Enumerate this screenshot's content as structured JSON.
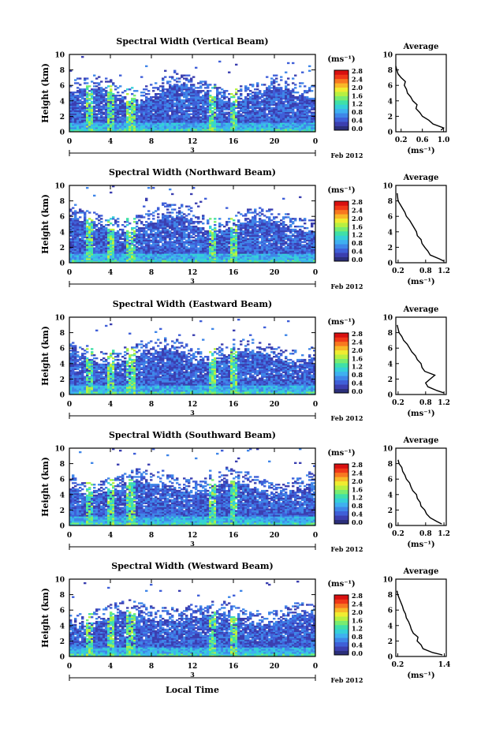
{
  "figure": {
    "xlabel": "Local Time",
    "date_label": "Feb 2012",
    "day_label": "3",
    "units": "(ms⁻¹)",
    "avg_title": "Average",
    "avg_xlabel": "(ms⁻¹)",
    "ylabel": "Height (km)"
  },
  "colors": {
    "colorbar": [
      "#2b2f7a",
      "#3b3fb0",
      "#3f5fd8",
      "#3f86e8",
      "#3fb0f0",
      "#35d0d8",
      "#40e0a8",
      "#78ec70",
      "#b8f040",
      "#f0ec30",
      "#f8b828",
      "#f87820",
      "#f03818",
      "#d81010"
    ]
  },
  "chart_data": [
    {
      "type": "heatmap",
      "title": "Spectral Width (Vertical Beam)",
      "x_ticks": [
        "0",
        "4",
        "8",
        "12",
        "16",
        "20",
        "0"
      ],
      "y_ticks": [
        "0",
        "2",
        "4",
        "6",
        "8",
        "10"
      ],
      "xlim": [
        0,
        24
      ],
      "ylim": [
        0,
        10
      ],
      "colorbar_ticks": [
        "0.0",
        "0.4",
        "0.8",
        "1.2",
        "1.6",
        "2.0",
        "2.4",
        "2.8"
      ],
      "avg_profile": {
        "x_ticks": [
          "0.2",
          "0.6",
          "1.0"
        ],
        "xlim": [
          0.1,
          1.05
        ],
        "x": [
          0.95,
          1.0,
          0.8,
          0.72,
          0.6,
          0.55,
          0.48,
          0.5,
          0.42,
          0.38,
          0.32,
          0.3,
          0.26,
          0.28,
          0.2,
          0.14,
          0.12,
          0.1
        ],
        "y": [
          0.2,
          0.5,
          1.0,
          1.5,
          2.0,
          2.5,
          3.0,
          3.5,
          4.0,
          4.5,
          5.0,
          5.5,
          6.0,
          6.5,
          7.0,
          7.5,
          8.0,
          8.5
        ]
      }
    },
    {
      "type": "heatmap",
      "title": "Spectral Width (Northward Beam)",
      "x_ticks": [
        "0",
        "4",
        "8",
        "12",
        "16",
        "20",
        "0"
      ],
      "y_ticks": [
        "0",
        "2",
        "4",
        "6",
        "8",
        "10"
      ],
      "xlim": [
        0,
        24
      ],
      "ylim": [
        0,
        10
      ],
      "colorbar_ticks": [
        "0.0",
        "0.4",
        "0.8",
        "1.2",
        "1.6",
        "2.0",
        "2.4",
        "2.8"
      ],
      "avg_profile": {
        "x_ticks": [
          "0.2",
          "0.8",
          "1.2"
        ],
        "xlim": [
          0.15,
          1.25
        ],
        "x": [
          1.2,
          1.1,
          0.9,
          0.85,
          0.78,
          0.72,
          0.7,
          0.62,
          0.6,
          0.55,
          0.5,
          0.45,
          0.38,
          0.35,
          0.3,
          0.25,
          0.2,
          0.18
        ],
        "y": [
          0.2,
          0.5,
          1.0,
          1.5,
          2.0,
          2.5,
          3.0,
          3.5,
          4.0,
          4.5,
          5.0,
          5.5,
          6.0,
          6.5,
          7.0,
          7.5,
          8.0,
          9.0
        ]
      }
    },
    {
      "type": "heatmap",
      "title": "Spectral Width (Eastward Beam)",
      "x_ticks": [
        "0",
        "4",
        "8",
        "12",
        "16",
        "20",
        "0"
      ],
      "y_ticks": [
        "0",
        "2",
        "4",
        "6",
        "8",
        "10"
      ],
      "xlim": [
        0,
        24
      ],
      "ylim": [
        0,
        10
      ],
      "colorbar_ticks": [
        "0.0",
        "0.4",
        "0.8",
        "1.2",
        "1.6",
        "2.0",
        "2.4",
        "2.8"
      ],
      "avg_profile": {
        "x_ticks": [
          "0.2",
          "0.8",
          "1.2"
        ],
        "xlim": [
          0.15,
          1.25
        ],
        "x": [
          1.2,
          1.05,
          0.85,
          0.8,
          0.9,
          1.0,
          0.78,
          0.72,
          0.7,
          0.62,
          0.58,
          0.5,
          0.45,
          0.4,
          0.32,
          0.28,
          0.22,
          0.18
        ],
        "y": [
          0.2,
          0.5,
          1.0,
          1.5,
          2.0,
          2.5,
          3.0,
          3.5,
          4.0,
          4.5,
          5.0,
          5.5,
          6.0,
          6.5,
          7.0,
          7.5,
          8.0,
          9.0
        ]
      }
    },
    {
      "type": "heatmap",
      "title": "Spectral Width (Southward Beam)",
      "x_ticks": [
        "0",
        "4",
        "8",
        "12",
        "16",
        "20",
        "0"
      ],
      "y_ticks": [
        "0",
        "2",
        "4",
        "6",
        "8",
        "10"
      ],
      "xlim": [
        0,
        24
      ],
      "ylim": [
        0,
        10
      ],
      "colorbar_ticks": [
        "0.0",
        "0.4",
        "0.8",
        "1.2",
        "1.6",
        "2.0",
        "2.4",
        "2.8"
      ],
      "avg_profile": {
        "x_ticks": [
          "0.2",
          "0.8",
          "1.2"
        ],
        "xlim": [
          0.15,
          1.25
        ],
        "x": [
          1.15,
          1.05,
          0.9,
          0.82,
          0.78,
          0.7,
          0.68,
          0.62,
          0.6,
          0.52,
          0.48,
          0.45,
          0.38,
          0.35,
          0.3,
          0.28,
          0.22,
          0.2
        ],
        "y": [
          0.2,
          0.5,
          1.0,
          1.5,
          2.0,
          2.5,
          3.0,
          3.5,
          4.0,
          4.5,
          5.0,
          5.5,
          6.0,
          6.5,
          7.0,
          7.5,
          8.0,
          8.5
        ]
      }
    },
    {
      "type": "heatmap",
      "title": "Spectral Width (Westward Beam)",
      "x_ticks": [
        "0",
        "4",
        "8",
        "12",
        "16",
        "20",
        "0"
      ],
      "y_ticks": [
        "0",
        "2",
        "4",
        "6",
        "8",
        "10"
      ],
      "xlim": [
        0,
        24
      ],
      "ylim": [
        0,
        10
      ],
      "colorbar_ticks": [
        "0.0",
        "0.4",
        "0.8",
        "1.2",
        "1.6",
        "2.0",
        "2.4",
        "2.8"
      ],
      "avg_profile": {
        "x_ticks": [
          "0.2",
          "1.4"
        ],
        "xlim": [
          0.15,
          1.45
        ],
        "x": [
          1.35,
          1.1,
          0.85,
          0.8,
          0.7,
          0.72,
          0.6,
          0.55,
          0.52,
          0.48,
          0.42,
          0.4,
          0.35,
          0.32,
          0.28,
          0.24,
          0.2,
          0.18
        ],
        "y": [
          0.2,
          0.5,
          1.0,
          1.5,
          2.0,
          2.5,
          3.0,
          3.5,
          4.0,
          4.5,
          5.0,
          5.5,
          6.0,
          6.5,
          7.0,
          7.5,
          8.0,
          8.5
        ]
      }
    }
  ]
}
